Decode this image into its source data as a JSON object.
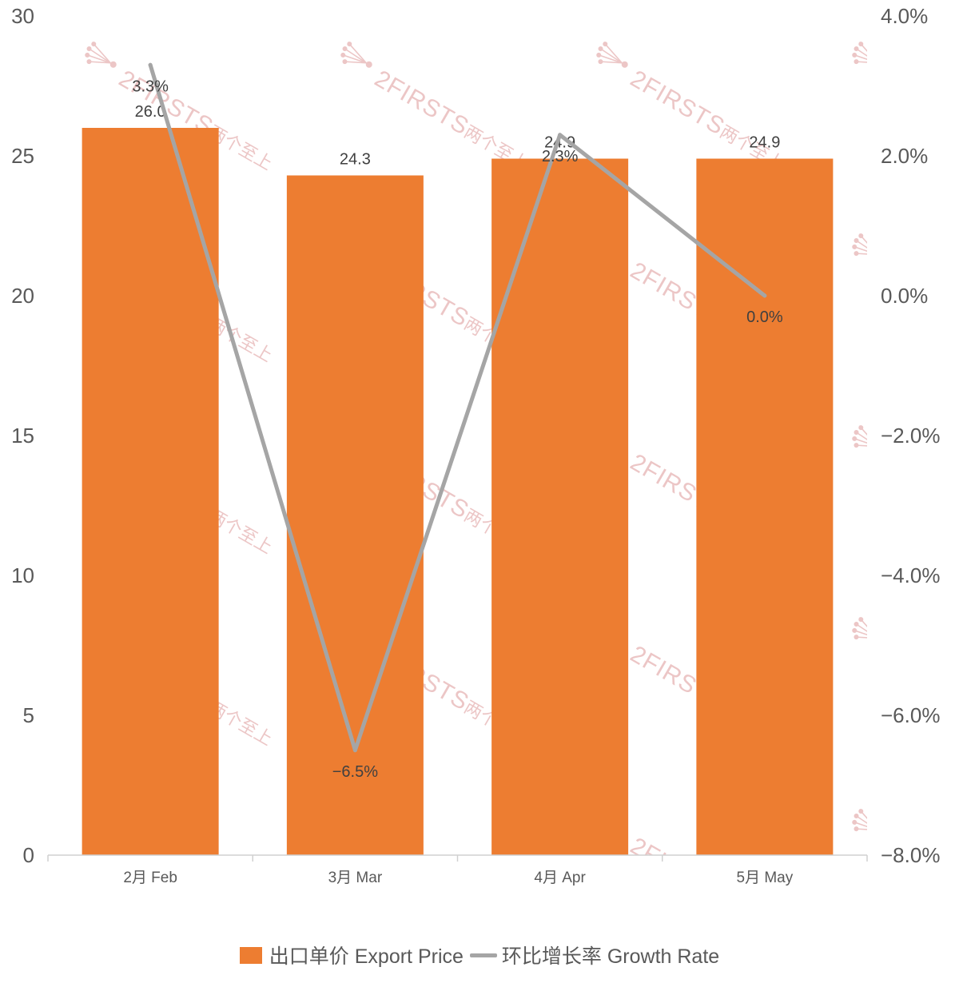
{
  "chart_data": {
    "type": "bar",
    "categories": [
      "2月 Feb",
      "3月 Mar",
      "4月 Apr",
      "5月 May"
    ],
    "series": [
      {
        "name": "出口单价 Export Price",
        "type": "bar",
        "axis": "left",
        "values": [
          26.0,
          24.3,
          24.9,
          24.9
        ],
        "labels": [
          "26.0",
          "24.3",
          "24.9",
          "24.9"
        ],
        "color": "#ED7D31"
      },
      {
        "name": "环比增长率 Growth Rate",
        "type": "line",
        "axis": "right",
        "values": [
          3.3,
          -6.5,
          2.3,
          0.0
        ],
        "labels": [
          "3.3%",
          "−6.5%",
          "2.3%",
          "0.0%"
        ],
        "color": "#A5A5A5"
      }
    ],
    "xlabel": "",
    "ylabel": "",
    "ylim": [
      0,
      30
    ],
    "yticks": [
      0,
      5,
      10,
      15,
      20,
      25,
      30
    ],
    "ytick_labels": [
      "0",
      "5",
      "10",
      "15",
      "20",
      "25",
      "30"
    ],
    "y2lim": [
      -8,
      4
    ],
    "y2ticks": [
      -8,
      -6,
      -4,
      -2,
      0,
      2,
      4
    ],
    "y2tick_labels": [
      "−8.0%",
      "−6.0%",
      "−4.0%",
      "−2.0%",
      "0.0%",
      "2.0%",
      "4.0%"
    ],
    "grid": false,
    "legend": "bottom"
  },
  "watermark": {
    "latin": "2FIRSTS",
    "cjk": "两个至上",
    "color": "#D98C8C"
  }
}
